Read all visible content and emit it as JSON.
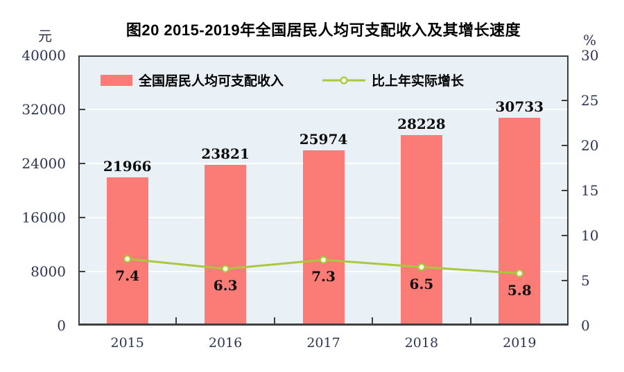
{
  "chart_data": {
    "type": "bar",
    "title": "图20  2015-2019年全国居民人均可支配收入及其增长速度",
    "categories": [
      "2015",
      "2016",
      "2017",
      "2018",
      "2019"
    ],
    "series": [
      {
        "name": "全国居民人均可支配收入",
        "type": "bar",
        "axis": "left",
        "color": "#fb7b76",
        "values": [
          21966,
          23821,
          25974,
          28228,
          30733
        ]
      },
      {
        "name": "比上年实际增长",
        "type": "line",
        "axis": "right",
        "color": "#a9c83d",
        "marker_fill": "#fdffe6",
        "values": [
          7.4,
          6.3,
          7.3,
          6.5,
          5.8
        ]
      }
    ],
    "left_axis": {
      "unit": "元",
      "min": 0,
      "max": 40000,
      "ticks": [
        0,
        8000,
        16000,
        24000,
        32000,
        40000
      ]
    },
    "right_axis": {
      "unit": "%",
      "min": 0,
      "max": 30,
      "ticks": [
        0,
        5,
        10,
        15,
        20,
        25,
        30
      ]
    },
    "grid": true,
    "legend_position": "top-inside",
    "colors": {
      "plot_bg": "#e9f1f6",
      "grid": "#ffffff",
      "frame": "#3f3f3f",
      "tick_label": "#2b3552",
      "data_label": "#0d0d0d"
    }
  }
}
